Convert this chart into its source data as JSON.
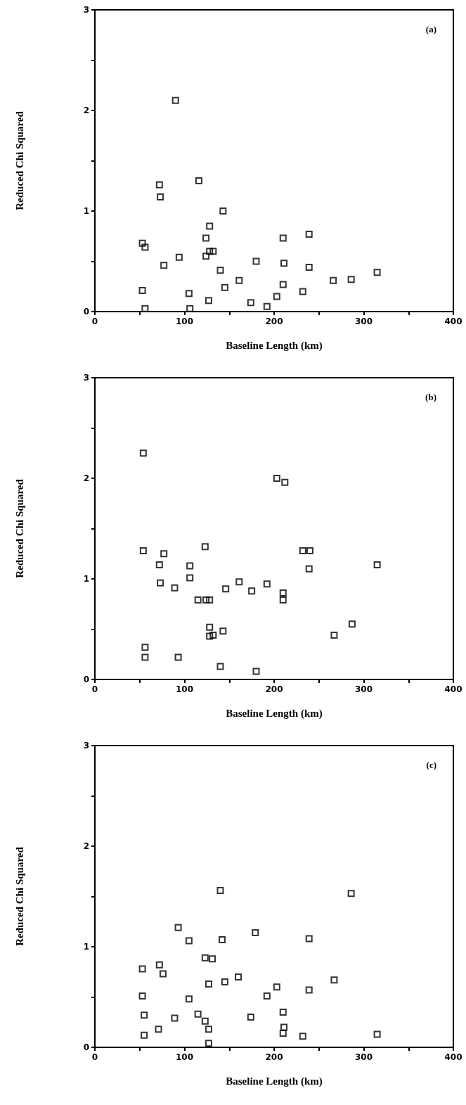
{
  "chart_data": [
    {
      "type": "scatter",
      "xlabel": "Baseline Length (km)",
      "ylabel": "Reduced Chi Squared",
      "annotations": [
        "(a)"
      ],
      "marker": "square",
      "grid": false,
      "xlim": [
        0,
        400
      ],
      "ylim": [
        0,
        3
      ],
      "xticks": [
        0,
        {
          "value": 50,
          "label": null
        },
        100,
        {
          "value": 150,
          "label": null
        },
        200,
        {
          "value": 250,
          "label": null
        },
        300,
        {
          "value": 350,
          "label": null
        },
        400
      ],
      "yticks": [
        0,
        {
          "value": 0.5,
          "label": null
        },
        1,
        {
          "value": 1.5,
          "label": null
        },
        2,
        {
          "value": 2.5,
          "label": null
        },
        3
      ],
      "series": [
        {
          "color": "#000000",
          "x": [
            90,
            72,
            73,
            116,
            143,
            128,
            124,
            210,
            239,
            53,
            56,
            94,
            124,
            128,
            132,
            77,
            180,
            211,
            239,
            140,
            315,
            161,
            266,
            286,
            145,
            210,
            53,
            105,
            232,
            127,
            174,
            203,
            192,
            56,
            106
          ],
          "values": [
            2.1,
            1.26,
            1.14,
            1.3,
            1.0,
            0.85,
            0.73,
            0.73,
            0.77,
            0.68,
            0.64,
            0.54,
            0.55,
            0.6,
            0.6,
            0.46,
            0.5,
            0.48,
            0.44,
            0.41,
            0.39,
            0.31,
            0.31,
            0.32,
            0.24,
            0.27,
            0.21,
            0.18,
            0.2,
            0.11,
            0.09,
            0.15,
            0.05,
            0.03,
            0.03
          ]
        }
      ]
    },
    {
      "type": "scatter",
      "xlabel": "Baseline Length (km)",
      "ylabel": "Reduced Chi Squared",
      "annotations": [
        "(b)"
      ],
      "marker": "square",
      "grid": false,
      "xlim": [
        0,
        400
      ],
      "ylim": [
        0,
        3
      ],
      "xticks": [
        0,
        {
          "value": 50,
          "label": null
        },
        100,
        {
          "value": 150,
          "label": null
        },
        200,
        {
          "value": 250,
          "label": null
        },
        300,
        {
          "value": 350,
          "label": null
        },
        400
      ],
      "yticks": [
        0,
        {
          "value": 0.5,
          "label": null
        },
        1,
        {
          "value": 1.5,
          "label": null
        },
        2,
        {
          "value": 2.5,
          "label": null
        },
        3
      ],
      "series": [
        {
          "color": "#000000",
          "x": [
            54,
            203,
            212,
            54,
            77,
            123,
            232,
            240,
            239,
            72,
            106,
            315,
            106,
            73,
            89,
            161,
            192,
            146,
            175,
            210,
            210,
            115,
            124,
            128,
            128,
            128,
            132,
            143,
            267,
            287,
            56,
            56,
            93,
            140,
            180
          ],
          "values": [
            2.25,
            2.0,
            1.96,
            1.28,
            1.25,
            1.32,
            1.28,
            1.28,
            1.1,
            1.14,
            1.13,
            1.14,
            1.01,
            0.96,
            0.91,
            0.97,
            0.95,
            0.9,
            0.88,
            0.86,
            0.79,
            0.79,
            0.79,
            0.79,
            0.52,
            0.43,
            0.44,
            0.48,
            0.44,
            0.55,
            0.32,
            0.22,
            0.22,
            0.13,
            0.08
          ]
        }
      ]
    },
    {
      "type": "scatter",
      "xlabel": "Baseline Length (km)",
      "ylabel": "Reduced Chi Squared",
      "annotations": [
        "(c)"
      ],
      "marker": "square",
      "grid": false,
      "xlim": [
        0,
        400
      ],
      "ylim": [
        0,
        3
      ],
      "xticks": [
        0,
        {
          "value": 50,
          "label": null
        },
        100,
        {
          "value": 150,
          "label": null
        },
        200,
        {
          "value": 250,
          "label": null
        },
        300,
        {
          "value": 350,
          "label": null
        },
        400
      ],
      "yticks": [
        0,
        {
          "value": 0.5,
          "label": null
        },
        1,
        {
          "value": 1.5,
          "label": null
        },
        2,
        {
          "value": 2.5,
          "label": null
        },
        3
      ],
      "series": [
        {
          "color": "#000000",
          "x": [
            140,
            286,
            93,
            179,
            105,
            142,
            239,
            123,
            131,
            53,
            72,
            76,
            160,
            267,
            127,
            145,
            203,
            239,
            53,
            192,
            105,
            55,
            115,
            210,
            89,
            174,
            123,
            71,
            127,
            211,
            210,
            232,
            315,
            55,
            127
          ],
          "values": [
            1.56,
            1.53,
            1.19,
            1.14,
            1.06,
            1.07,
            1.08,
            0.89,
            0.88,
            0.78,
            0.82,
            0.73,
            0.7,
            0.67,
            0.63,
            0.65,
            0.6,
            0.57,
            0.51,
            0.51,
            0.48,
            0.32,
            0.33,
            0.35,
            0.29,
            0.3,
            0.26,
            0.18,
            0.18,
            0.2,
            0.14,
            0.11,
            0.13,
            0.12,
            0.04
          ]
        }
      ]
    }
  ]
}
